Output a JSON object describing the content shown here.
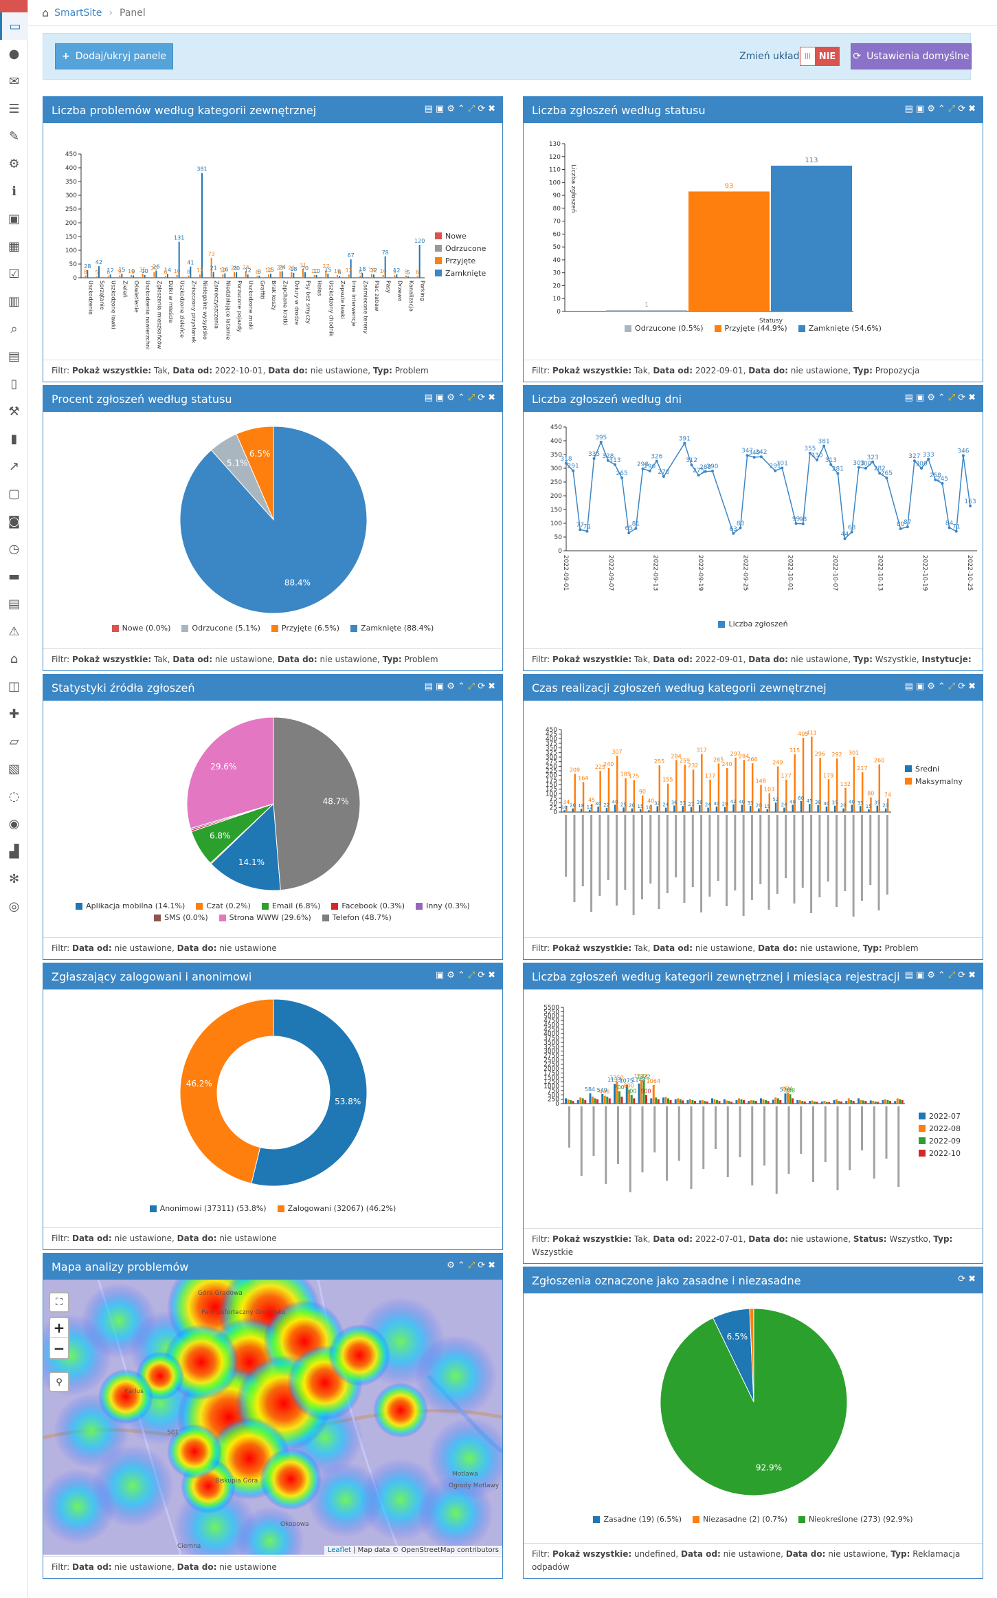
{
  "breadcrumb": {
    "app": "SmartSite",
    "page": "Panel"
  },
  "toolbar": {
    "add_label": "Dodaj/ukryj panele",
    "layout_label": "Zmień układ",
    "toggle_value": "NIE",
    "default_label": "Ustawienia domyślne"
  },
  "sidebar_icons": [
    "monitor-icon",
    "user-icon",
    "envelope-icon",
    "list-icon",
    "comments-icon",
    "gear-icon",
    "info-icon",
    "document-image-icon",
    "image-icon",
    "checkbox-icon",
    "calendar-icon",
    "search-icon",
    "calendar-check-icon",
    "book-icon",
    "wrench-icon",
    "building-icon",
    "share-icon",
    "file-icon",
    "bus-icon",
    "clock-icon",
    "money-icon",
    "file-text-icon",
    "warning-icon",
    "institution-icon",
    "contact-card-icon",
    "puzzle-icon",
    "folder-open-icon",
    "file-alt-icon",
    "chat-icon",
    "rss-icon",
    "bar-chart-icon",
    "gears-icon",
    "collapse-icon"
  ],
  "colors": {
    "panel": "#3b86c5",
    "blue": "#1f77b4",
    "orange": "#ff7f0e",
    "green": "#2ca02c",
    "red": "#d62728",
    "purple": "#9467bd",
    "brown": "#8c564b",
    "pink": "#e377c2",
    "gray": "#7f7f7f"
  },
  "panels": {
    "p1": {
      "title": "Liczba problemów według kategorii zewnętrznej",
      "filter": [
        [
          "Filtr: ",
          ""
        ],
        [
          "Pokaż wszystkie:",
          " Tak, "
        ],
        [
          "Data od:",
          " 2022-10-01, "
        ],
        [
          "Data do:",
          " nie ustawione, "
        ],
        [
          "Typ:",
          " Problem"
        ]
      ]
    },
    "p2": {
      "title": "Liczba zgłoszeń według statusu",
      "filter": [
        [
          "Filtr: ",
          ""
        ],
        [
          "Pokaż wszystkie:",
          " Tak, "
        ],
        [
          "Data od:",
          " 2022-09-01, "
        ],
        [
          "Data do:",
          " nie ustawione, "
        ],
        [
          "Typ:",
          " Propozycja"
        ]
      ]
    },
    "p3": {
      "title": "Procent zgłoszeń według statusu",
      "filter": [
        [
          "Filtr: ",
          ""
        ],
        [
          "Pokaż wszystkie:",
          " Tak, "
        ],
        [
          "Data od:",
          " nie ustawione, "
        ],
        [
          "Data do:",
          " nie ustawione, "
        ],
        [
          "Typ:",
          " Problem"
        ]
      ]
    },
    "p4": {
      "title": "Liczba zgłoszeń według dni",
      "filter": [
        [
          "Filtr: ",
          ""
        ],
        [
          "Pokaż wszystkie:",
          " Tak, "
        ],
        [
          "Data od:",
          " 2022-09-01, "
        ],
        [
          "Data do:",
          " nie ustawione, "
        ],
        [
          "Typ:",
          " Wszystkie, "
        ],
        [
          "Instytucje:",
          ""
        ]
      ]
    },
    "p5": {
      "title": "Statystyki źródła zgłoszeń",
      "filter": [
        [
          "Filtr: ",
          ""
        ],
        [
          "Data od:",
          " nie ustawione, "
        ],
        [
          "Data do:",
          " nie ustawione"
        ]
      ]
    },
    "p6": {
      "title": "Czas realizacji zgłoszeń według kategorii zewnętrznej",
      "filter": [
        [
          "Filtr: ",
          ""
        ],
        [
          "Pokaż wszystkie:",
          " Tak, "
        ],
        [
          "Data od:",
          " nie ustawione, "
        ],
        [
          "Data do:",
          " nie ustawione, "
        ],
        [
          "Typ:",
          " Problem"
        ]
      ]
    },
    "p7": {
      "title": "Zgłaszający zalogowani i anonimowi",
      "filter": [
        [
          "Filtr: ",
          ""
        ],
        [
          "Data od:",
          " nie ustawione, "
        ],
        [
          "Data do:",
          " nie ustawione"
        ]
      ]
    },
    "p8": {
      "title": "Liczba zgłoszeń według kategorii zewnętrznej i miesiąca rejestracji",
      "filter": [
        [
          "Filtr: ",
          ""
        ],
        [
          "Pokaż wszystkie:",
          " Tak, "
        ],
        [
          "Data od:",
          " 2022-07-01, "
        ],
        [
          "Data do:",
          " nie ustawione, "
        ],
        [
          "Status:",
          " Wszystko, "
        ],
        [
          "Typ:",
          " Wszystkie"
        ]
      ]
    },
    "p9": {
      "title": "Mapa analizy problemów",
      "filter": [
        [
          "Filtr: ",
          ""
        ],
        [
          "Data od:",
          " nie ustawione, "
        ],
        [
          "Data do:",
          " nie ustawione"
        ]
      ],
      "attribution_leaflet": "Leaflet",
      "attribution_rest": " | Map data © OpenStreetMap contributors",
      "labels": [
        "Góra Gradowa",
        "Park poforteczny Grodzisko",
        "Karlus",
        "501",
        "Biskupia Góra",
        "Ciemna",
        "Okopowa",
        "Motlawa",
        "Ogrody Motlawy"
      ]
    },
    "p10": {
      "title": "Zgłoszenia oznaczone jako zasadne i niezasadne",
      "filter": [
        [
          "Filtr: ",
          ""
        ],
        [
          "Pokaż wszystkie:",
          " undefined, "
        ],
        [
          "Data od:",
          " nie ustawione, "
        ],
        [
          "Data do:",
          " nie ustawione, "
        ],
        [
          "Typ:",
          " Reklamacja odpadów"
        ]
      ]
    }
  },
  "chart_data": [
    {
      "id": "p1",
      "type": "bar",
      "yticks": [
        0,
        50,
        100,
        150,
        200,
        250,
        300,
        350,
        400,
        450
      ],
      "ylim": [
        0,
        450
      ],
      "legend": [
        "Nowe",
        "Odrzucone",
        "Przyjęte",
        "Zamknięte"
      ],
      "categories": [
        "Uszkodzenia",
        "Sprzątanie",
        "Uszkodzone ławki",
        "Zieleń",
        "Oświetlenie",
        "Uszkodzenia nawierzchni",
        "Zgłoszenia mieszkańców",
        "Dziki w mieście",
        "Uszkodzone zieleńce",
        "Zniszczony przystanek",
        "Nielegalne wysypisko",
        "Zanieczyszczenia",
        "Niedziałające latarnie",
        "Porzucone pojazdy",
        "Uszkodzone znaki",
        "Graffiti",
        "Brak koszy",
        "Zapchane kratki",
        "Dziury w drodze",
        "Psy bez smyczy",
        "Hałas",
        "Uszkodzony chodnik",
        "Zepsute ławki",
        "Inne interwencje",
        "Zaśmiecone tereny",
        "Plac zabaw",
        "Pasy",
        "Drzewa",
        "Kanalizacja",
        "Parking"
      ],
      "series": [
        {
          "name": "Zamknięte",
          "values": [
            28,
            42,
            12,
            15,
            9,
            10,
            26,
            14,
            131,
            41,
            381,
            21,
            16,
            20,
            12,
            8,
            15,
            24,
            18,
            20,
            10,
            15,
            6,
            67,
            18,
            12,
            78,
            12,
            5,
            120
          ]
        },
        {
          "name": "Przyjęte",
          "values": [
            8,
            5,
            6,
            9,
            10,
            15,
            20,
            6,
            10,
            8,
            12,
            73,
            12,
            21,
            24,
            6,
            12,
            23,
            21,
            31,
            10,
            27,
            10,
            12,
            8,
            14,
            10,
            9,
            8,
            6
          ]
        }
      ]
    },
    {
      "id": "p2",
      "type": "bar",
      "title_axis": "Statusy",
      "ylabel": "Liczba zgłoszeń",
      "yticks": [
        0,
        10,
        20,
        30,
        40,
        50,
        60,
        70,
        80,
        90,
        100,
        110,
        120,
        130
      ],
      "ylim": [
        0,
        130
      ],
      "categories": [
        "Odrzucone",
        "Przyjęte",
        "Zamknięte"
      ],
      "values": [
        1,
        93,
        113
      ],
      "legend": [
        "Odrzucone (0.5%)",
        "Przyjęte (44.9%)",
        "Zamknięte (54.6%)"
      ]
    },
    {
      "id": "p3",
      "type": "pie",
      "slices": [
        {
          "label": "Nowe (0.0%)",
          "value": 0.0
        },
        {
          "label": "Odrzucone (5.1%)",
          "value": 5.1,
          "text": "5.1%"
        },
        {
          "label": "Przyjęte (6.5%)",
          "value": 6.5,
          "text": "6.5%"
        },
        {
          "label": "Zamknięte (88.4%)",
          "value": 88.4,
          "text": "88.4%"
        }
      ]
    },
    {
      "id": "p4",
      "type": "line",
      "series_name": "Liczba zgłoszeń",
      "yticks": [
        0,
        50,
        100,
        150,
        200,
        250,
        300,
        350,
        400,
        450
      ],
      "ylim": [
        0,
        450
      ],
      "xticks": [
        "2022-09-01",
        "2022-09-07",
        "2022-09-13",
        "2022-09-19",
        "2022-09-25",
        "2022-10-01",
        "2022-10-07",
        "2022-10-13",
        "2022-10-19",
        "2022-10-25"
      ],
      "values": [
        318,
        291,
        77,
        71,
        335,
        395,
        328,
        313,
        265,
        65,
        81,
        298,
        290,
        326,
        270,
        null,
        null,
        391,
        312,
        275,
        288,
        290,
        null,
        null,
        63,
        83,
        347,
        340,
        342,
        null,
        291,
        301,
        null,
        99,
        98,
        355,
        330,
        381,
        313,
        281,
        44,
        68,
        303,
        300,
        323,
        282,
        265,
        null,
        80,
        87,
        327,
        300,
        333,
        258,
        245,
        84,
        71,
        346,
        163
      ]
    },
    {
      "id": "p5",
      "type": "pie",
      "slices": [
        {
          "label": "Aplikacja mobilna (14.1%)",
          "value": 14.1,
          "text": "14.1%"
        },
        {
          "label": "Czat (0.2%)",
          "value": 0.2
        },
        {
          "label": "Email (6.8%)",
          "value": 6.8,
          "text": "6.8%"
        },
        {
          "label": "Facebook (0.3%)",
          "value": 0.3
        },
        {
          "label": "Inny (0.3%)",
          "value": 0.3
        },
        {
          "label": "SMS (0.0%)",
          "value": 0.0
        },
        {
          "label": "Strona WWW (29.6%)",
          "value": 29.6,
          "text": "29.6%"
        },
        {
          "label": "Telefon (48.7%)",
          "value": 48.7,
          "text": "48.7%"
        }
      ]
    },
    {
      "id": "p6",
      "type": "bar",
      "yticks": [
        0,
        25,
        50,
        75,
        100,
        125,
        150,
        175,
        200,
        225,
        250,
        275,
        300,
        325,
        350,
        375,
        400,
        425,
        450
      ],
      "ylim": [
        0,
        450
      ],
      "legend": [
        "Średni",
        "Maksymalny"
      ],
      "series": [
        {
          "name": "Maksymalny",
          "values": [
            34,
            209,
            164,
            45,
            225,
            240,
            307,
            185,
            175,
            90,
            40,
            255,
            155,
            284,
            259,
            232,
            317,
            177,
            265,
            240,
            297,
            284,
            266,
            148,
            103,
            249,
            177,
            315,
            405,
            411,
            296,
            179,
            292,
            132,
            301,
            217,
            80,
            260,
            74
          ]
        },
        {
          "name": "Średni",
          "values": [
            10,
            20,
            18,
            12,
            30,
            22,
            40,
            25,
            20,
            15,
            10,
            32,
            24,
            36,
            33,
            27,
            38,
            24,
            30,
            28,
            42,
            40,
            33,
            20,
            15,
            52,
            24,
            40,
            60,
            45,
            38,
            30,
            35,
            20,
            40,
            33,
            15,
            35,
            20
          ]
        }
      ]
    },
    {
      "id": "p7",
      "type": "donut",
      "slices": [
        {
          "label": "Anonimowi (37311) (53.8%)",
          "value": 53.8,
          "text": "53.8%"
        },
        {
          "label": "Zalogowani (32067) (46.2%)",
          "value": 46.2,
          "text": "46.2%"
        }
      ]
    },
    {
      "id": "p8",
      "type": "bar",
      "yticks": [
        0,
        250,
        500,
        750,
        1000,
        1250,
        1500,
        1750,
        2000,
        2250,
        2500,
        2750,
        3000,
        3250,
        3500,
        3750,
        4000,
        4250,
        4500,
        4750,
        5000,
        5250,
        5500
      ],
      "ylim": [
        0,
        5500
      ],
      "legend": [
        "2022-07",
        "2022-08",
        "2022-09",
        "2022-10"
      ],
      "series": [
        {
          "name": "2022-07",
          "values": [
            300,
            200,
            584,
            549,
            1133,
            1075,
            1148,
            300,
            350,
            250,
            200,
            180,
            300,
            250,
            200,
            150,
            300,
            220,
            576,
            200,
            150,
            120,
            200,
            150,
            300,
            180,
            200,
            150
          ]
        },
        {
          "name": "2022-08",
          "values": [
            240,
            350,
            400,
            446,
            1250,
            800,
            1344,
            1064,
            380,
            300,
            257,
            200,
            250,
            180,
            300,
            200,
            250,
            350,
            634,
            200,
            180,
            160,
            250,
            300,
            200,
            160,
            250,
            300
          ]
        },
        {
          "name": "2022-09",
          "values": [
            200,
            300,
            300,
            400,
            700,
            500,
            1322,
            350,
            300,
            250,
            200,
            150,
            200,
            150,
            250,
            180,
            200,
            300,
            538,
            150,
            120,
            100,
            150,
            200,
            180,
            120,
            200,
            250
          ]
        },
        {
          "name": "2022-10",
          "values": [
            150,
            200,
            250,
            300,
            400,
            300,
            500,
            250,
            200,
            180,
            150,
            120,
            150,
            100,
            200,
            150,
            150,
            200,
            300,
            120,
            100,
            80,
            120,
            150,
            150,
            100,
            150,
            200
          ]
        }
      ]
    },
    {
      "id": "p10",
      "type": "pie",
      "slices": [
        {
          "label": "Zasadne (19) (6.5%)",
          "value": 6.5,
          "text": "6.5%"
        },
        {
          "label": "Niezasadne (2) (0.7%)",
          "value": 0.7
        },
        {
          "label": "Nieokreślone (273) (92.9%)",
          "value": 92.9,
          "text": "92.9%"
        }
      ]
    }
  ]
}
